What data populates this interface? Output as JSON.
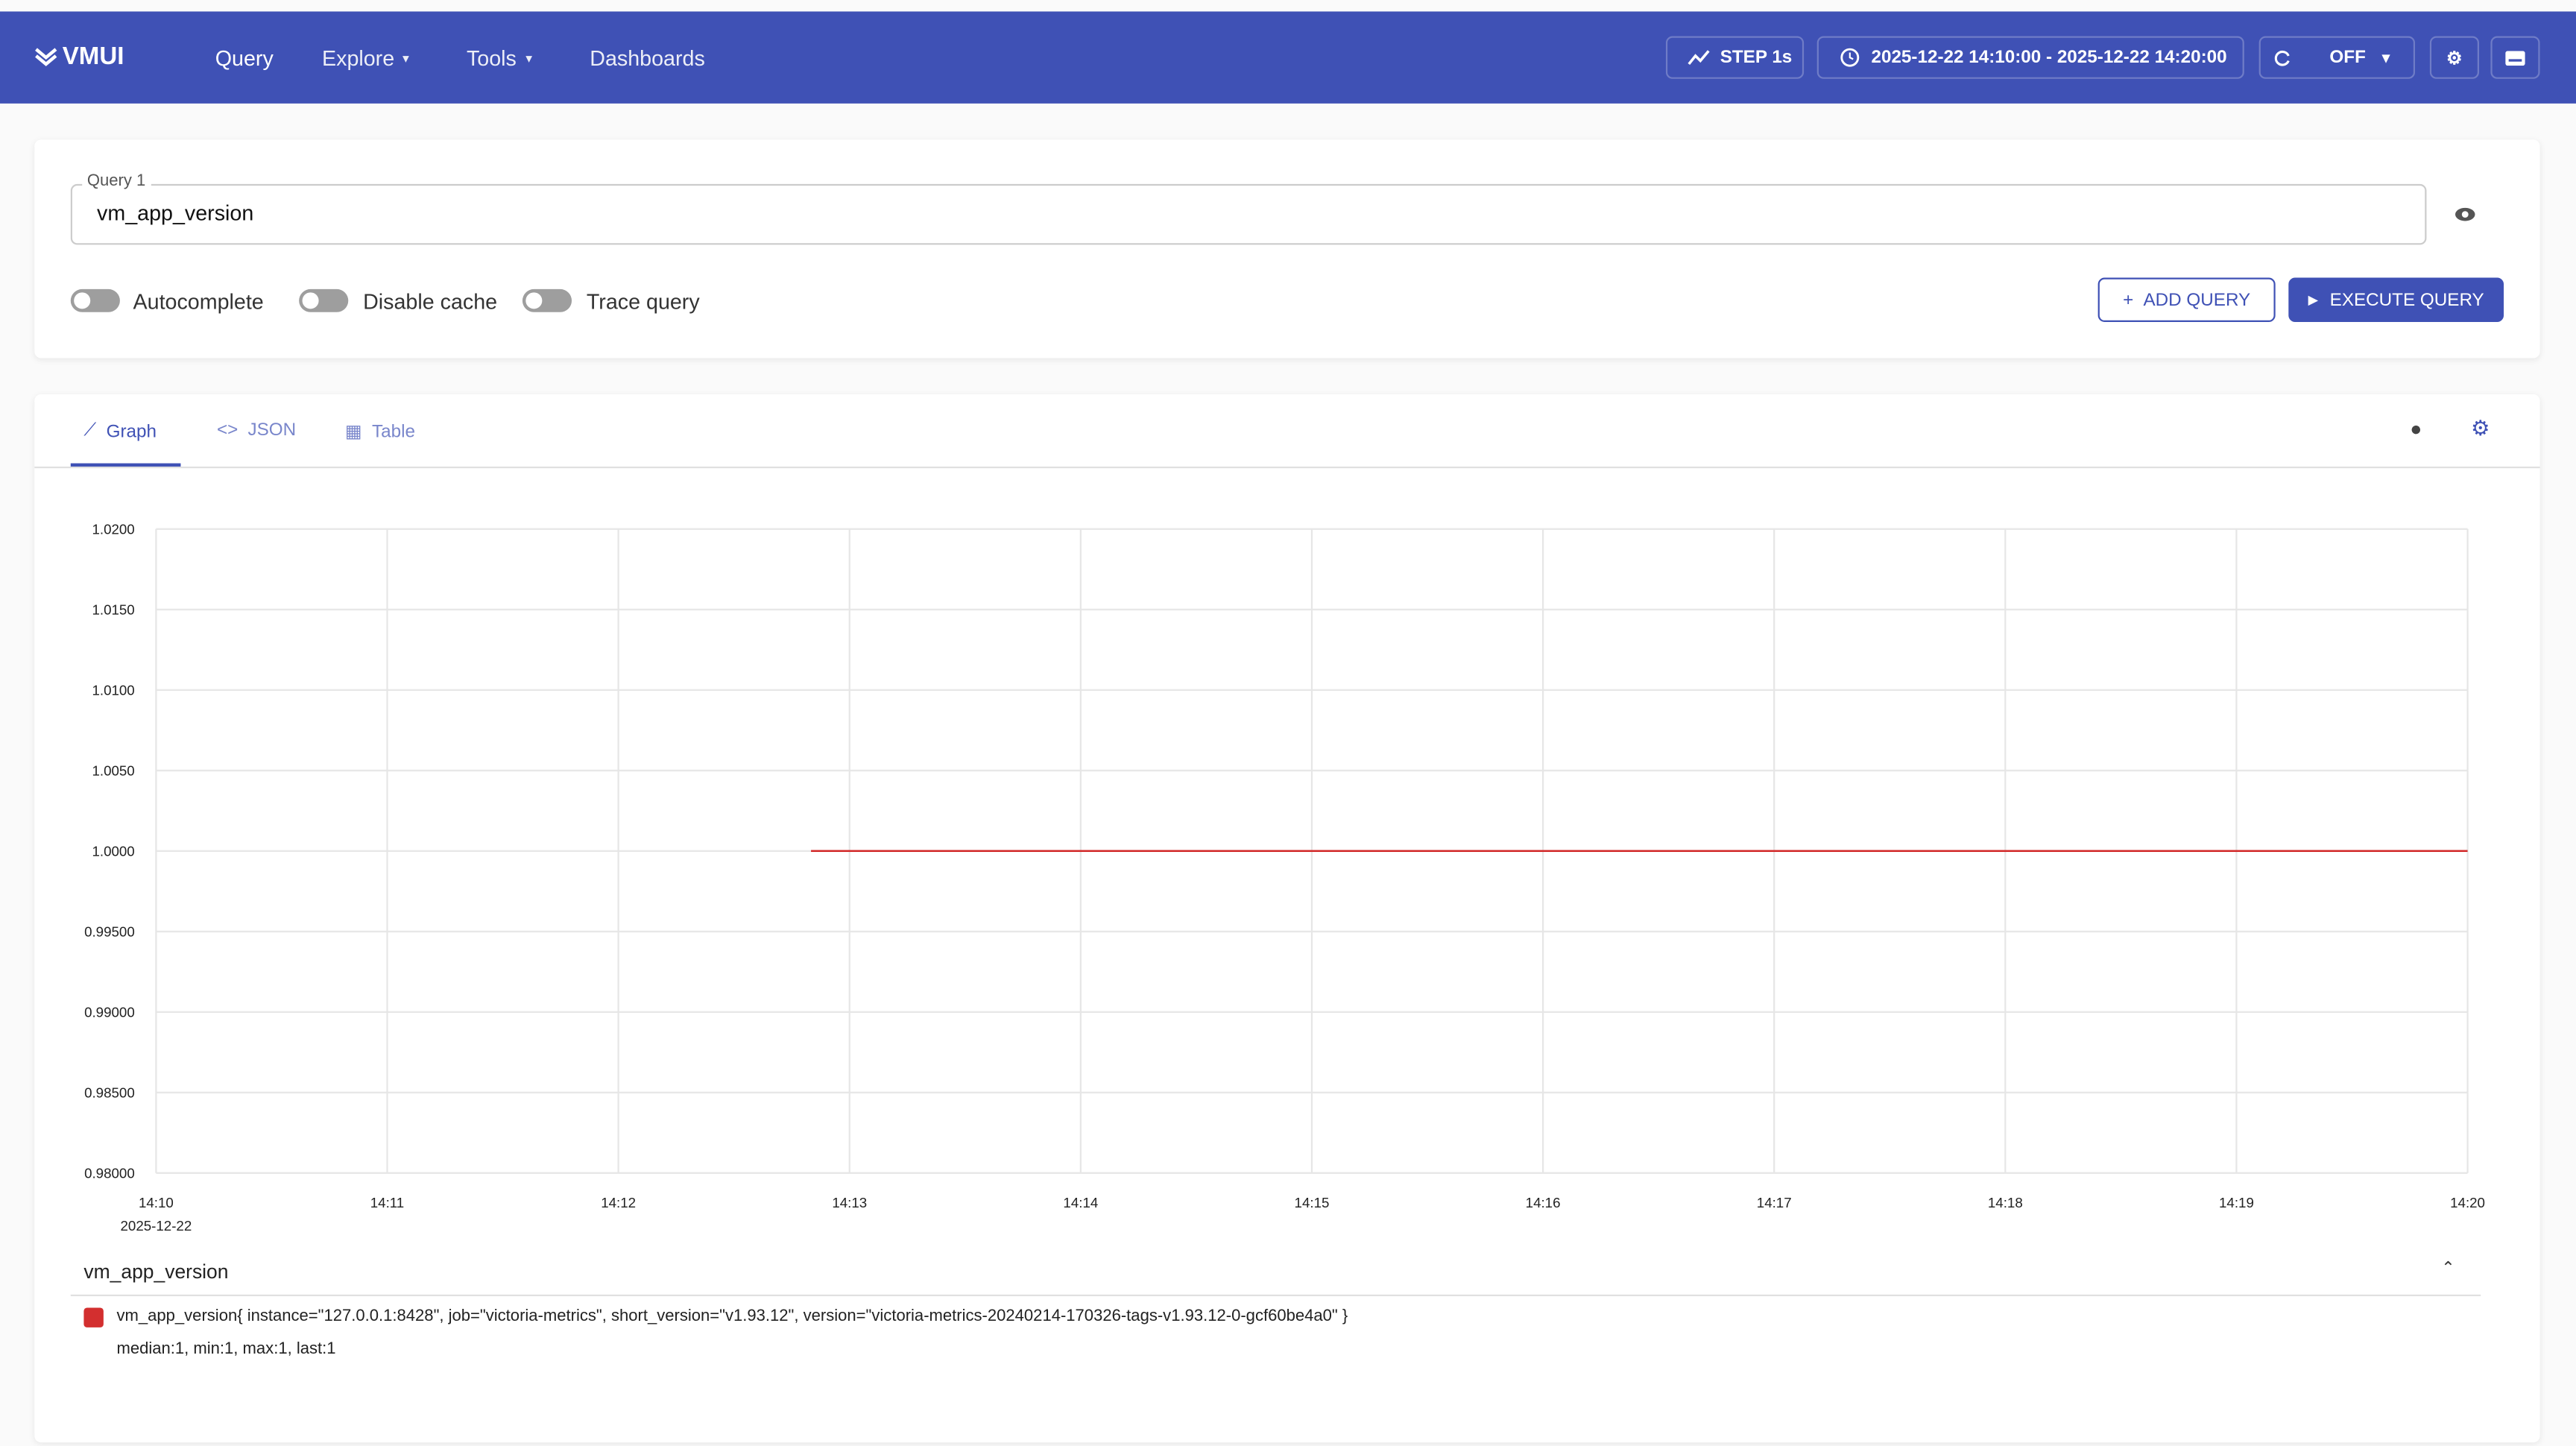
{
  "header": {
    "logo": "VMUI",
    "nav": [
      "Query",
      "Explore",
      "Tools",
      "Dashboards"
    ],
    "step": "STEP 1s",
    "time_range": "2025-12-22 14:10:00 - 2025-12-22 14:20:00",
    "refresh": "OFF"
  },
  "query": {
    "label": "Query 1",
    "expression": "vm_app_version",
    "toggles": [
      "Autocomplete",
      "Disable cache",
      "Trace query"
    ],
    "buttons": [
      "ADD QUERY",
      "EXECUTE QUERY"
    ]
  },
  "tabs": [
    "Graph",
    "JSON",
    "Table"
  ],
  "chart_data": {
    "type": "line",
    "x_date_label": "2025-12-22",
    "x": [
      "14:12:50",
      "14:20:00"
    ],
    "series": [
      {
        "name": "vm_app_version{ instance=\"127.0.0.1:8428\", job=\"victoria-metrics\", short_version=\"v1.93.12\", version=\"victoria-metrics-20240214-170326-tags-v1.93.12-0-gcf60be4a0\" }",
        "color": "#d32f2f",
        "values": [
          1,
          1
        ]
      }
    ],
    "xlim": [
      "14:10",
      "14:20"
    ],
    "xticks": [
      "14:10",
      "14:11",
      "14:12",
      "14:13",
      "14:14",
      "14:15",
      "14:16",
      "14:17",
      "14:18",
      "14:19",
      "14:20"
    ],
    "ylim": [
      0.98,
      1.02
    ],
    "yticks": [
      {
        "value": 0.98,
        "label": "0.98000"
      },
      {
        "value": 0.985,
        "label": "0.98500"
      },
      {
        "value": 0.99,
        "label": "0.99000"
      },
      {
        "value": 0.995,
        "label": "0.99500"
      },
      {
        "value": 1,
        "label": "1.0000"
      },
      {
        "value": 1.005,
        "label": "1.0050"
      },
      {
        "value": 1.01,
        "label": "1.0100"
      },
      {
        "value": 1.015,
        "label": "1.0150"
      },
      {
        "value": 1.02,
        "label": "1.0200"
      }
    ],
    "grid": true
  },
  "legend": {
    "group": "vm_app_version",
    "stats": [
      "median:1, min:1, max:1, last:1"
    ]
  }
}
